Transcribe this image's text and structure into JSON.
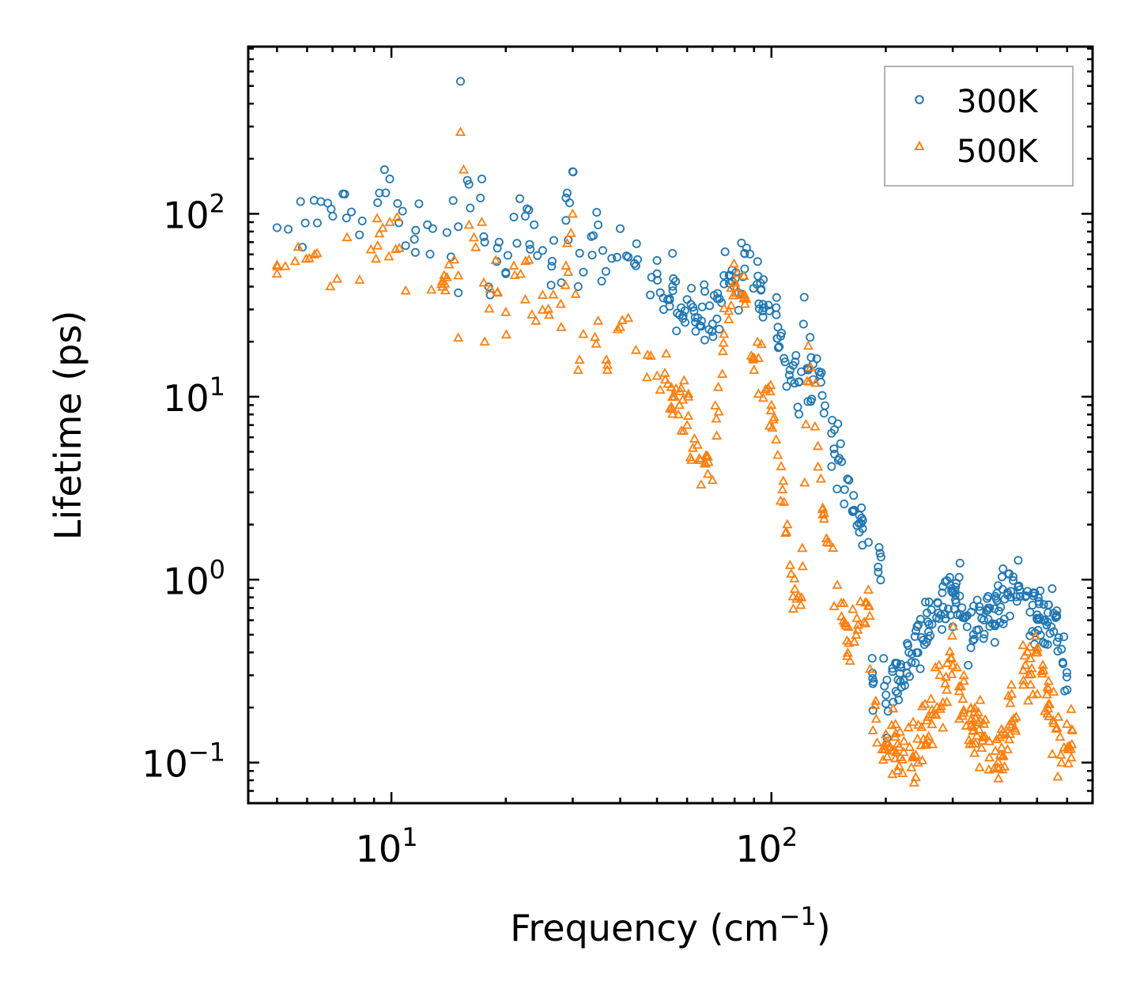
{
  "chart_data": {
    "type": "scatter",
    "xscale": "log",
    "yscale": "log",
    "xlabel": "Frequency (cm",
    "xlabel_sup": "−1",
    "xlabel_end": ")",
    "ylabel": "Lifetime (ps)",
    "xlim": [
      4.2,
      700
    ],
    "ylim": [
      0.06,
      820
    ],
    "x_ticks": [
      {
        "value": 10,
        "base": "10",
        "exp": "1"
      },
      {
        "value": 100,
        "base": "10",
        "exp": "2"
      }
    ],
    "y_ticks": [
      {
        "value": 0.1,
        "base": "10",
        "exp": "−1"
      },
      {
        "value": 1,
        "base": "10",
        "exp": "0"
      },
      {
        "value": 10,
        "base": "10",
        "exp": "1"
      },
      {
        "value": 100,
        "base": "10",
        "exp": "2"
      }
    ],
    "legend_position": "top-right",
    "series": [
      {
        "name": "300K",
        "marker": "circle",
        "color": "#1f77b4",
        "key_points": [
          [
            5.0,
            84
          ],
          [
            9.2,
            115
          ],
          [
            9.3,
            130
          ],
          [
            9.9,
            155
          ],
          [
            10.9,
            67
          ],
          [
            14.0,
            79
          ],
          [
            15.0,
            85
          ],
          [
            15.0,
            37
          ],
          [
            15.2,
            530
          ],
          [
            16.0,
            145
          ],
          [
            17.3,
            155
          ],
          [
            17.5,
            75
          ],
          [
            17.6,
            70
          ],
          [
            18.2,
            36
          ],
          [
            19.0,
            65
          ],
          [
            19.2,
            70
          ],
          [
            20.0,
            47
          ],
          [
            21.0,
            96
          ],
          [
            22.5,
            97
          ],
          [
            23.0,
            105
          ],
          [
            23.1,
            68
          ],
          [
            23.2,
            64
          ],
          [
            25.0,
            63
          ],
          [
            26.5,
            55
          ],
          [
            28.0,
            42
          ],
          [
            28.8,
            92
          ],
          [
            29.0,
            130
          ],
          [
            29.2,
            72
          ],
          [
            30.0,
            170
          ],
          [
            31.0,
            40
          ],
          [
            32.0,
            48
          ],
          [
            34.0,
            76
          ],
          [
            35.0,
            87
          ],
          [
            36.0,
            63
          ],
          [
            38.0,
            57
          ],
          [
            40.0,
            83
          ],
          [
            42.0,
            58
          ],
          [
            44.0,
            52
          ],
          [
            48.0,
            36
          ],
          [
            50.0,
            47
          ],
          [
            52.0,
            30
          ],
          [
            55.0,
            38
          ],
          [
            60.0,
            34
          ],
          [
            64.0,
            27
          ],
          [
            70.0,
            25
          ],
          [
            75.0,
            46
          ],
          [
            78.0,
            46
          ],
          [
            82.0,
            37
          ],
          [
            85.0,
            50
          ],
          [
            86.0,
            65
          ],
          [
            95.0,
            32
          ],
          [
            104.0,
            24
          ],
          [
            112.0,
            14
          ],
          [
            118.0,
            12
          ],
          [
            122.0,
            35
          ],
          [
            125.0,
            14
          ],
          [
            135.0,
            12
          ],
          [
            150.0,
            4.5
          ],
          [
            165.0,
            2.4
          ],
          [
            180.0,
            1.6
          ],
          [
            185.0,
            0.27
          ],
          [
            192.0,
            1.5
          ],
          [
            200.0,
            0.21
          ],
          [
            230.0,
            0.4
          ],
          [
            300.0,
            0.86
          ],
          [
            340.0,
            0.5
          ],
          [
            390.0,
            0.79
          ],
          [
            450.0,
            0.88
          ],
          [
            520.0,
            0.6
          ],
          [
            560.0,
            0.62
          ],
          [
            600.0,
            0.25
          ]
        ]
      },
      {
        "name": "500K",
        "marker": "triangle",
        "color": "#ff7f0e",
        "key_points": [
          [
            5.0,
            47
          ],
          [
            9.2,
            67
          ],
          [
            9.3,
            78
          ],
          [
            9.9,
            90
          ],
          [
            10.9,
            38
          ],
          [
            14.0,
            45
          ],
          [
            15.0,
            46
          ],
          [
            15.0,
            21
          ],
          [
            15.2,
            280
          ],
          [
            16.0,
            87
          ],
          [
            17.3,
            90
          ],
          [
            17.5,
            42
          ],
          [
            17.6,
            20
          ],
          [
            18.2,
            39
          ],
          [
            19.0,
            37
          ],
          [
            20.0,
            29
          ],
          [
            21.0,
            52
          ],
          [
            22.5,
            34
          ],
          [
            23.0,
            56
          ],
          [
            24.0,
            26
          ],
          [
            25.0,
            36
          ],
          [
            26.0,
            28
          ],
          [
            28.0,
            24
          ],
          [
            28.8,
            52
          ],
          [
            29.0,
            69
          ],
          [
            29.2,
            48
          ],
          [
            30.0,
            100
          ],
          [
            31.0,
            14
          ],
          [
            32.0,
            22
          ],
          [
            35.0,
            26
          ],
          [
            37.0,
            14
          ],
          [
            40.0,
            24
          ],
          [
            44.0,
            18
          ],
          [
            50.0,
            13
          ],
          [
            55.0,
            10
          ],
          [
            60.0,
            7
          ],
          [
            65.0,
            4.5
          ],
          [
            70.0,
            3.5
          ],
          [
            75.0,
            22
          ],
          [
            80.0,
            42
          ],
          [
            85.0,
            36
          ],
          [
            90.0,
            14
          ],
          [
            100.0,
            9
          ],
          [
            112.0,
            1.2
          ],
          [
            120.0,
            0.8
          ],
          [
            125.0,
            19
          ],
          [
            140.0,
            1.6
          ],
          [
            160.0,
            0.45
          ],
          [
            180.0,
            0.88
          ],
          [
            185.0,
            0.15
          ],
          [
            200.0,
            0.13
          ],
          [
            240.0,
            0.11
          ],
          [
            300.0,
            0.34
          ],
          [
            340.0,
            0.15
          ],
          [
            400.0,
            0.11
          ],
          [
            460.0,
            0.32
          ],
          [
            520.0,
            0.32
          ],
          [
            580.0,
            0.1
          ],
          [
            620.0,
            0.15
          ]
        ]
      }
    ]
  }
}
